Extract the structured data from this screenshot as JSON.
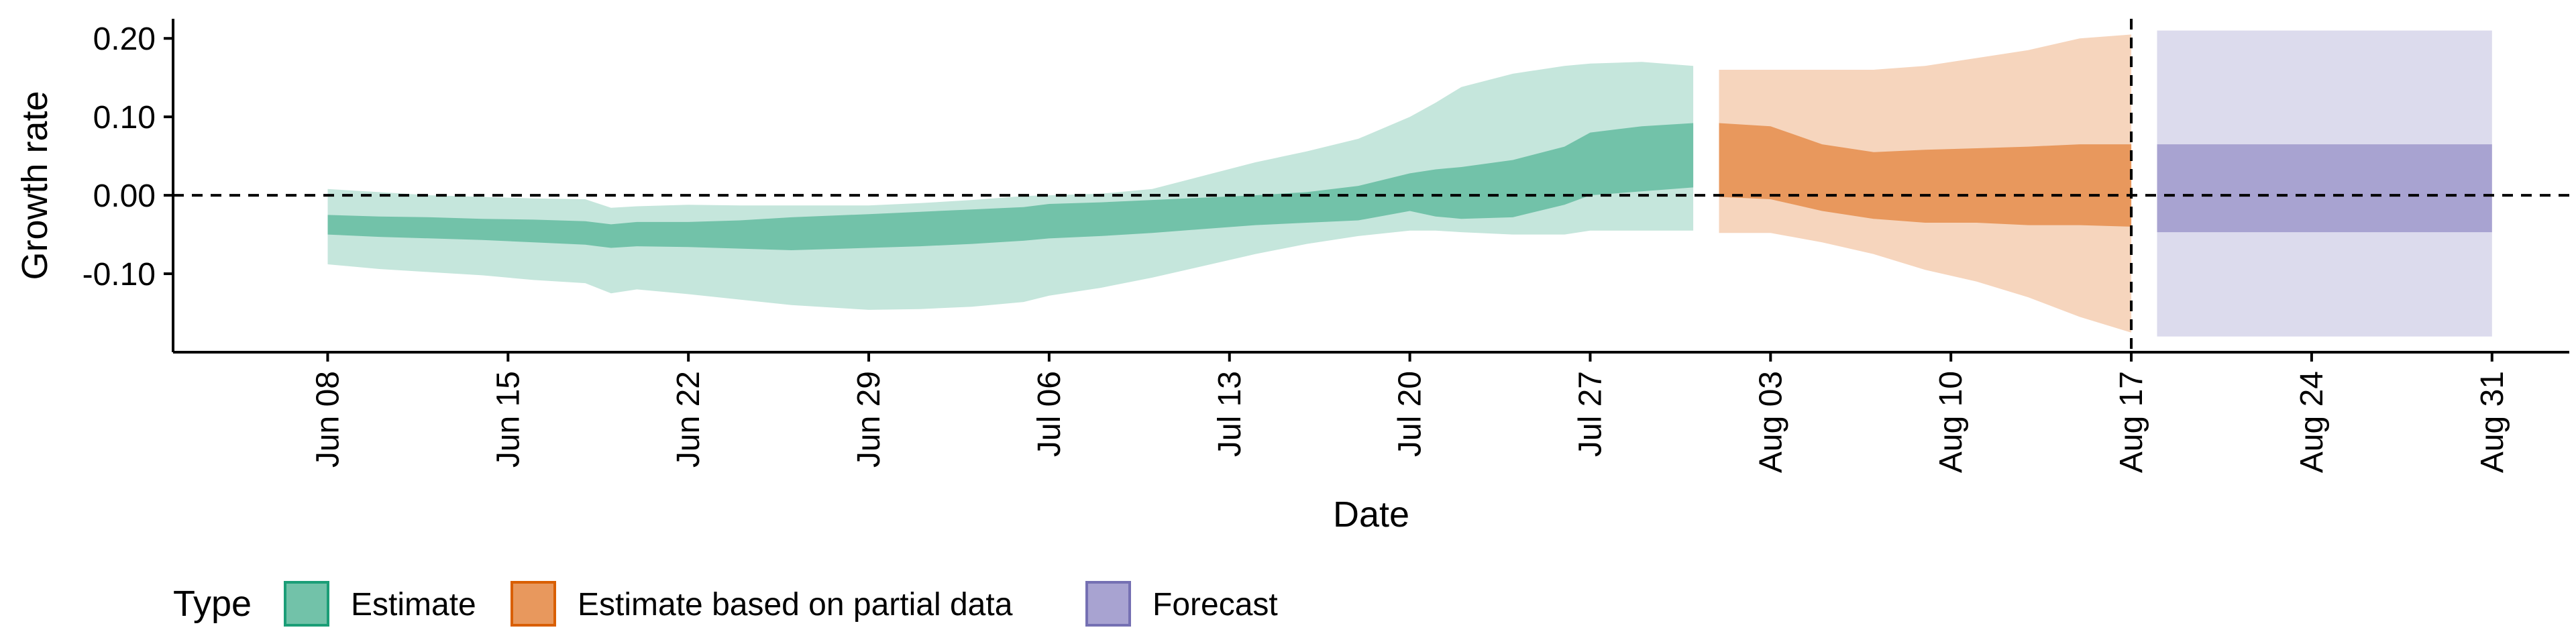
{
  "chart_data": {
    "type": "area",
    "xlabel": "Date",
    "ylabel": "Growth rate",
    "ylim": [
      -0.2,
      0.225
    ],
    "xlim": [
      "2020-06-02",
      "2020-09-03"
    ],
    "x_ticks": [
      {
        "date": "2020-06-08",
        "label": "Jun 08"
      },
      {
        "date": "2020-06-15",
        "label": "Jun 15"
      },
      {
        "date": "2020-06-22",
        "label": "Jun 22"
      },
      {
        "date": "2020-06-29",
        "label": "Jun 29"
      },
      {
        "date": "2020-07-06",
        "label": "Jul 06"
      },
      {
        "date": "2020-07-13",
        "label": "Jul 13"
      },
      {
        "date": "2020-07-20",
        "label": "Jul 20"
      },
      {
        "date": "2020-07-27",
        "label": "Jul 27"
      },
      {
        "date": "2020-08-03",
        "label": "Aug 03"
      },
      {
        "date": "2020-08-10",
        "label": "Aug 10"
      },
      {
        "date": "2020-08-17",
        "label": "Aug 17"
      },
      {
        "date": "2020-08-24",
        "label": "Aug 24"
      },
      {
        "date": "2020-08-31",
        "label": "Aug 31"
      }
    ],
    "y_ticks": [
      {
        "value": 0.2,
        "label": "0.20"
      },
      {
        "value": 0.1,
        "label": "0.10"
      },
      {
        "value": 0.0,
        "label": "0.00"
      },
      {
        "value": -0.1,
        "label": "-0.10"
      }
    ],
    "reference_lines": {
      "y": 0.0,
      "x": "2020-08-17",
      "style": "dashed"
    },
    "grid": false,
    "legend": {
      "title": "Type",
      "position": "bottom",
      "entries": [
        {
          "label": "Estimate",
          "fill": "#72c2a9",
          "border": "#1b9e77"
        },
        {
          "label": "Estimate based on partial data",
          "fill": "#e8985d",
          "border": "#d95f02"
        },
        {
          "label": "Forecast",
          "fill": "#a8a3d1",
          "border": "#7570b3"
        }
      ]
    },
    "series": [
      {
        "name": "Estimate",
        "inner_color": "#72c2a9",
        "outer_color": "#c5e6dc",
        "x": [
          "2020-06-08",
          "2020-06-10",
          "2020-06-12",
          "2020-06-14",
          "2020-06-16",
          "2020-06-18",
          "2020-06-19",
          "2020-06-20",
          "2020-06-22",
          "2020-06-24",
          "2020-06-26",
          "2020-06-29",
          "2020-07-01",
          "2020-07-03",
          "2020-07-05",
          "2020-07-06",
          "2020-07-08",
          "2020-07-10",
          "2020-07-12",
          "2020-07-14",
          "2020-07-16",
          "2020-07-18",
          "2020-07-20",
          "2020-07-21",
          "2020-07-22",
          "2020-07-24",
          "2020-07-26",
          "2020-07-27",
          "2020-07-29",
          "2020-07-31"
        ],
        "outer_upper": [
          0.008,
          0.004,
          0.0,
          -0.002,
          -0.004,
          -0.005,
          -0.016,
          -0.014,
          -0.012,
          -0.013,
          -0.013,
          -0.013,
          -0.01,
          -0.006,
          -0.001,
          0.0,
          0.002,
          0.008,
          0.025,
          0.042,
          0.056,
          0.072,
          0.1,
          0.118,
          0.138,
          0.155,
          0.165,
          0.168,
          0.17,
          0.165
        ],
        "inner_upper": [
          -0.025,
          -0.027,
          -0.028,
          -0.03,
          -0.031,
          -0.033,
          -0.037,
          -0.034,
          -0.034,
          -0.032,
          -0.028,
          -0.024,
          -0.021,
          -0.018,
          -0.015,
          -0.011,
          -0.009,
          -0.006,
          -0.003,
          0.0,
          0.004,
          0.012,
          0.028,
          0.033,
          0.036,
          0.045,
          0.062,
          0.08,
          0.088,
          0.092
        ],
        "inner_lower": [
          -0.05,
          -0.053,
          -0.055,
          -0.057,
          -0.06,
          -0.063,
          -0.067,
          -0.065,
          -0.066,
          -0.068,
          -0.07,
          -0.067,
          -0.065,
          -0.062,
          -0.058,
          -0.055,
          -0.052,
          -0.048,
          -0.043,
          -0.038,
          -0.035,
          -0.032,
          -0.02,
          -0.027,
          -0.03,
          -0.028,
          -0.012,
          0.0,
          0.005,
          0.01
        ],
        "outer_lower": [
          -0.088,
          -0.094,
          -0.098,
          -0.102,
          -0.108,
          -0.112,
          -0.125,
          -0.12,
          -0.126,
          -0.133,
          -0.14,
          -0.146,
          -0.145,
          -0.142,
          -0.136,
          -0.128,
          -0.118,
          -0.105,
          -0.09,
          -0.075,
          -0.062,
          -0.052,
          -0.045,
          -0.045,
          -0.047,
          -0.05,
          -0.05,
          -0.045,
          -0.045,
          -0.045
        ]
      },
      {
        "name": "Estimate based on partial data",
        "inner_color": "#e8985d",
        "outer_color": "#f6d5bd",
        "x": [
          "2020-08-01",
          "2020-08-03",
          "2020-08-05",
          "2020-08-07",
          "2020-08-09",
          "2020-08-11",
          "2020-08-13",
          "2020-08-15",
          "2020-08-17"
        ],
        "outer_upper": [
          0.16,
          0.16,
          0.16,
          0.16,
          0.165,
          0.175,
          0.185,
          0.2,
          0.205
        ],
        "inner_upper": [
          0.092,
          0.088,
          0.065,
          0.055,
          0.058,
          0.06,
          0.062,
          0.065,
          0.065
        ],
        "inner_lower": [
          -0.002,
          -0.005,
          -0.02,
          -0.03,
          -0.035,
          -0.035,
          -0.038,
          -0.038,
          -0.04
        ],
        "outer_lower": [
          -0.048,
          -0.048,
          -0.06,
          -0.075,
          -0.095,
          -0.11,
          -0.13,
          -0.155,
          -0.175
        ]
      },
      {
        "name": "Forecast",
        "inner_color": "#a8a3d1",
        "outer_color": "#dcdbed",
        "x": [
          "2020-08-18",
          "2020-08-31"
        ],
        "outer_upper": [
          0.21,
          0.21
        ],
        "inner_upper": [
          0.065,
          0.065
        ],
        "inner_lower": [
          -0.047,
          -0.047
        ],
        "outer_lower": [
          -0.18,
          -0.18
        ]
      }
    ]
  }
}
